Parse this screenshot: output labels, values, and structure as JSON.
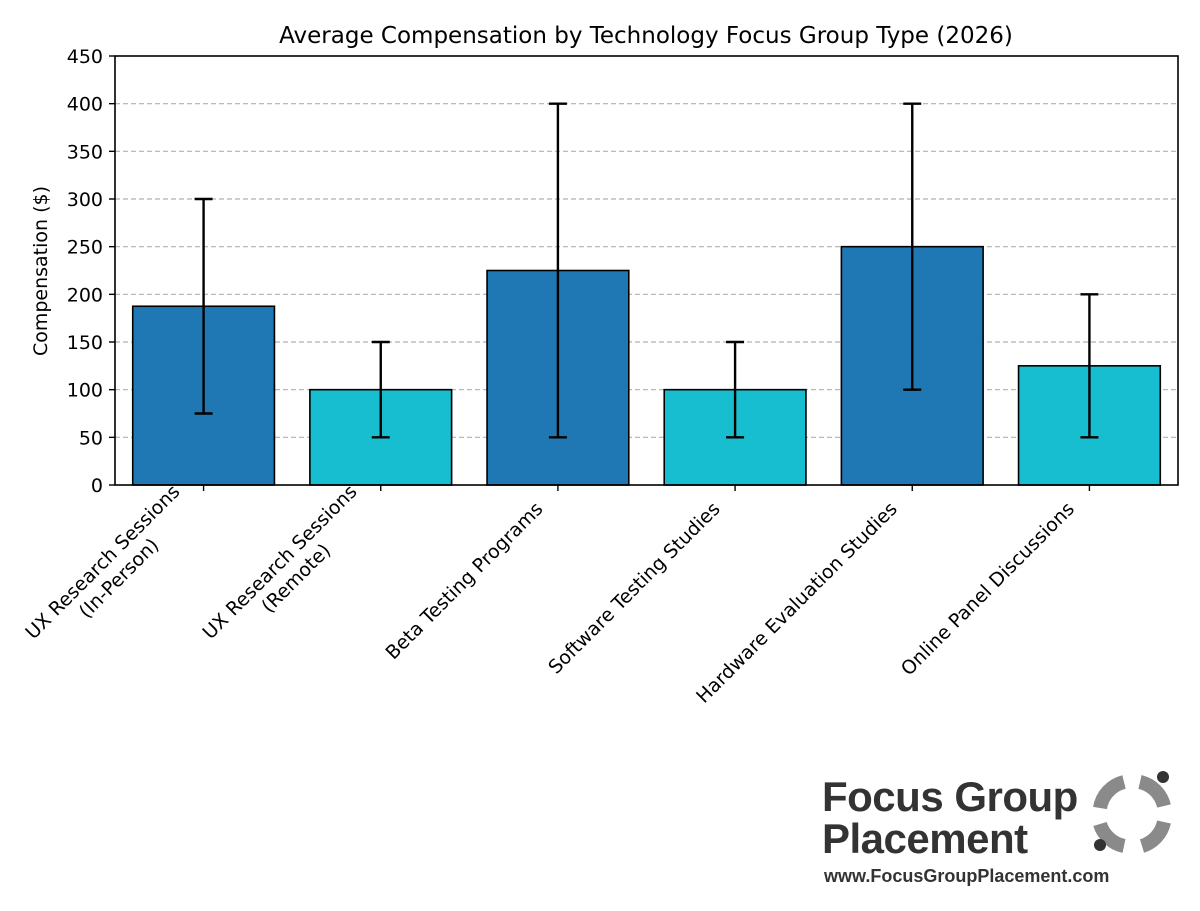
{
  "chart_data": {
    "type": "bar",
    "title": "Average Compensation by Technology Focus Group Type (2026)",
    "xlabel": "",
    "ylabel": "Compensation ($)",
    "ylim": [
      0,
      450
    ],
    "yticks": [
      0,
      50,
      100,
      150,
      200,
      250,
      300,
      350,
      400,
      450
    ],
    "grid": "y-dashed",
    "categories": [
      [
        "UX Research Sessions",
        "(In-Person)"
      ],
      [
        "UX Research Sessions",
        "(Remote)"
      ],
      [
        "Beta Testing Programs"
      ],
      [
        "Software Testing Studies"
      ],
      [
        "Hardware Evaluation Studies"
      ],
      [
        "Online Panel Discussions"
      ]
    ],
    "values": [
      187.5,
      100,
      225,
      100,
      250,
      125
    ],
    "error_low": [
      75,
      50,
      50,
      50,
      100,
      50
    ],
    "error_high": [
      300,
      150,
      400,
      150,
      400,
      200
    ],
    "colors": [
      "#1f77b4",
      "#17becf",
      "#1f77b4",
      "#17becf",
      "#1f77b4",
      "#17becf"
    ]
  },
  "logo": {
    "line1": "Focus Group",
    "line2": "Placement",
    "url": "www.FocusGroupPlacement.com"
  }
}
